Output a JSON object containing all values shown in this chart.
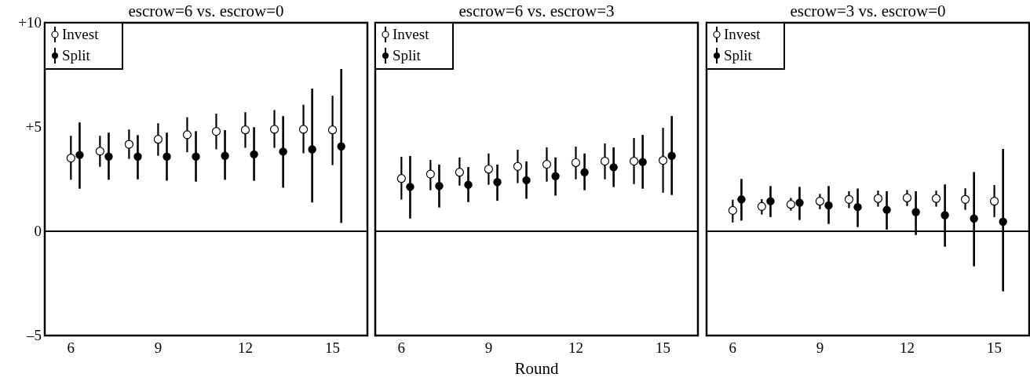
{
  "chart_data": [
    {
      "type": "scatter",
      "title": "escrow=6 vs. escrow=0",
      "x": [
        6,
        7,
        8,
        9,
        10,
        11,
        12,
        13,
        14,
        15
      ],
      "xlim": [
        5.1,
        16.2
      ],
      "xticks": [
        6,
        9,
        12,
        15
      ],
      "ylim": [
        -5,
        10
      ],
      "yticks": [
        {
          "value": 10,
          "label": "+10"
        },
        {
          "value": 5,
          "label": "+5"
        },
        0,
        {
          "value": -5,
          "label": "–5"
        }
      ],
      "legend": "top left",
      "marker": "circle",
      "ref_lines": [
        {
          "axis": "y",
          "value": 0,
          "color": "#000000"
        }
      ],
      "series": [
        {
          "name": "Invest",
          "color": "#000000",
          "values": [
            3.51,
            3.84,
            4.17,
            4.41,
            4.63,
            4.79,
            4.86,
            4.89,
            4.89,
            4.86
          ],
          "errors": [
            [
              2.47,
              4.58
            ],
            [
              3.09,
              4.58
            ],
            [
              3.47,
              4.88
            ],
            [
              3.62,
              5.18
            ],
            [
              3.79,
              5.47
            ],
            [
              3.93,
              5.64
            ],
            [
              4.0,
              5.71
            ],
            [
              4.0,
              5.81
            ],
            [
              3.74,
              6.07
            ],
            [
              3.17,
              6.5
            ]
          ]
        },
        {
          "name": "Split",
          "color": "#000000",
          "x": [
            6.3,
            7.3,
            8.3,
            9.3,
            10.3,
            11.3,
            12.3,
            13.3,
            14.3,
            15.3
          ],
          "values": [
            3.66,
            3.58,
            3.58,
            3.58,
            3.58,
            3.62,
            3.69,
            3.82,
            3.93,
            4.07
          ],
          "errors": [
            [
              2.04,
              5.22
            ],
            [
              2.47,
              4.73
            ],
            [
              2.49,
              4.61
            ],
            [
              2.43,
              4.73
            ],
            [
              2.38,
              4.8
            ],
            [
              2.47,
              4.85
            ],
            [
              2.42,
              4.99
            ],
            [
              2.09,
              5.52
            ],
            [
              1.38,
              6.84
            ],
            [
              0.4,
              7.78
            ]
          ]
        }
      ]
    },
    {
      "type": "scatter",
      "title": "escrow=6 vs. escrow=3",
      "xlabel": "Round",
      "x": [
        6,
        7,
        8,
        9,
        10,
        11,
        12,
        13,
        14,
        15
      ],
      "xlim": [
        5.1,
        16.2
      ],
      "xticks": [
        6,
        9,
        12,
        15
      ],
      "ylim": [
        -5,
        10
      ],
      "tick_labels": "x",
      "legend": "top left",
      "marker": "circle",
      "ref_lines": [
        {
          "axis": "y",
          "value": 0,
          "color": "#000000"
        }
      ],
      "series": [
        {
          "name": "Invest",
          "color": "#000000",
          "values": [
            2.53,
            2.74,
            2.83,
            2.98,
            3.11,
            3.21,
            3.29,
            3.36,
            3.36,
            3.4
          ],
          "errors": [
            [
              1.52,
              3.57
            ],
            [
              1.97,
              3.42
            ],
            [
              2.19,
              3.54
            ],
            [
              2.23,
              3.73
            ],
            [
              2.31,
              3.91
            ],
            [
              2.38,
              4.02
            ],
            [
              2.49,
              4.06
            ],
            [
              2.49,
              4.21
            ],
            [
              2.26,
              4.47
            ],
            [
              1.85,
              4.96
            ]
          ]
        },
        {
          "name": "Split",
          "color": "#000000",
          "x": [
            6.3,
            7.3,
            8.3,
            9.3,
            10.3,
            11.3,
            12.3,
            13.3,
            14.3,
            15.3
          ],
          "values": [
            2.13,
            2.17,
            2.23,
            2.36,
            2.45,
            2.64,
            2.83,
            3.07,
            3.32,
            3.62
          ],
          "errors": [
            [
              0.61,
              3.61
            ],
            [
              1.14,
              3.2
            ],
            [
              1.4,
              3.08
            ],
            [
              1.46,
              3.2
            ],
            [
              1.56,
              3.35
            ],
            [
              1.71,
              3.54
            ],
            [
              1.97,
              3.73
            ],
            [
              2.12,
              4.02
            ],
            [
              2.04,
              4.62
            ],
            [
              1.74,
              5.53
            ]
          ]
        }
      ]
    },
    {
      "type": "scatter",
      "title": "escrow=3 vs. escrow=0",
      "x": [
        6,
        7,
        8,
        9,
        10,
        11,
        12,
        13,
        14,
        15
      ],
      "xlim": [
        5.1,
        16.2
      ],
      "xticks": [
        6,
        9,
        12,
        15
      ],
      "ylim": [
        -5,
        10
      ],
      "tick_labels": "x",
      "legend": "top left",
      "marker": "circle",
      "ref_lines": [
        {
          "axis": "y",
          "value": 0,
          "color": "#000000"
        }
      ],
      "series": [
        {
          "name": "Invest",
          "color": "#000000",
          "values": [
            1.0,
            1.19,
            1.29,
            1.44,
            1.53,
            1.57,
            1.6,
            1.57,
            1.53,
            1.44
          ],
          "errors": [
            [
              0.42,
              1.51
            ],
            [
              0.8,
              1.54
            ],
            [
              0.99,
              1.6
            ],
            [
              1.06,
              1.79
            ],
            [
              1.11,
              1.92
            ],
            [
              1.18,
              1.95
            ],
            [
              1.21,
              1.98
            ],
            [
              1.18,
              1.95
            ],
            [
              1.03,
              2.06
            ],
            [
              0.68,
              2.22
            ]
          ]
        },
        {
          "name": "Split",
          "color": "#000000",
          "x": [
            6.3,
            7.3,
            8.3,
            9.3,
            10.3,
            11.3,
            12.3,
            13.3,
            14.3,
            15.3
          ],
          "values": [
            1.53,
            1.44,
            1.37,
            1.24,
            1.16,
            1.03,
            0.92,
            0.77,
            0.61,
            0.46
          ],
          "errors": [
            [
              0.51,
              2.51
            ],
            [
              0.68,
              2.17
            ],
            [
              0.54,
              2.13
            ],
            [
              0.35,
              2.17
            ],
            [
              0.2,
              2.05
            ],
            [
              0.08,
              1.92
            ],
            [
              -0.18,
              1.92
            ],
            [
              -0.74,
              2.25
            ],
            [
              -1.68,
              2.84
            ],
            [
              -2.88,
              3.95
            ]
          ]
        }
      ]
    }
  ]
}
